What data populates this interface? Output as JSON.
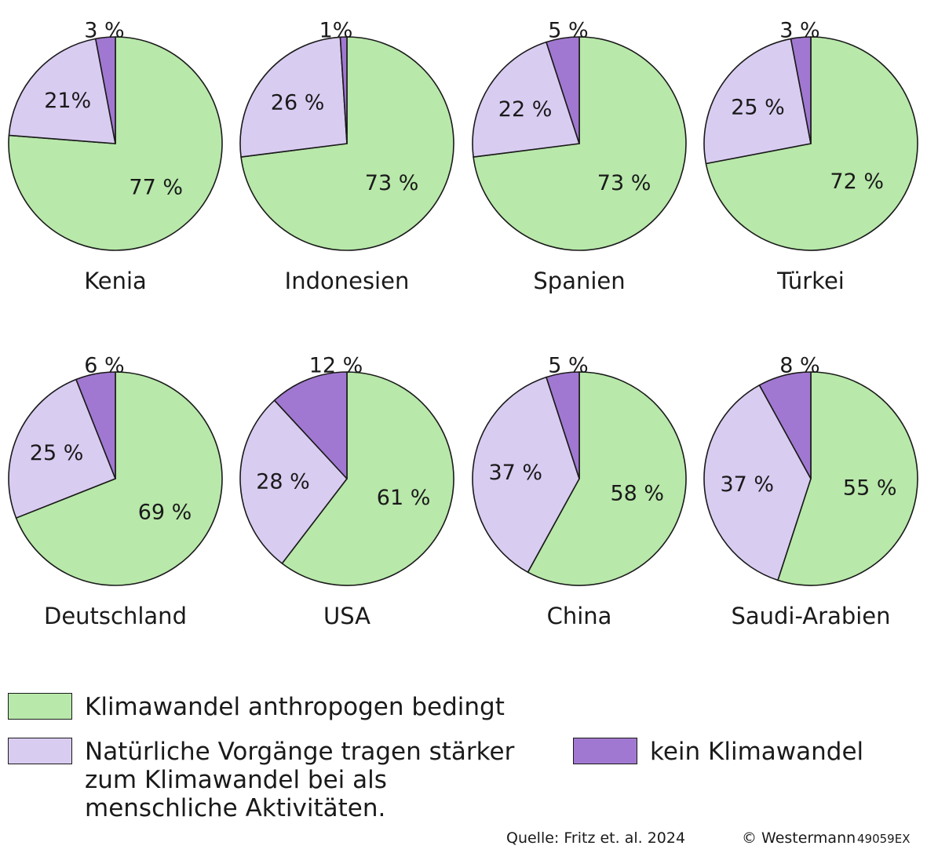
{
  "colors": {
    "anthropogenic": "#b8e8aa",
    "natural": "#d9ccf1",
    "none": "#a178d1",
    "stroke": "#1a1a1a"
  },
  "chart_data": {
    "type": "pie",
    "series_order": [
      "anthropogenic",
      "natural",
      "none"
    ],
    "charts": [
      {
        "country": "Kenia",
        "values": [
          77,
          21,
          3
        ],
        "labels": [
          "77 %",
          "21%",
          "3 %"
        ]
      },
      {
        "country": "Indonesien",
        "values": [
          73,
          26,
          1
        ],
        "labels": [
          "73 %",
          "26 %",
          "1%"
        ]
      },
      {
        "country": "Spanien",
        "values": [
          73,
          22,
          5
        ],
        "labels": [
          "73 %",
          "22 %",
          "5 %"
        ]
      },
      {
        "country": "Türkei",
        "values": [
          72,
          25,
          3
        ],
        "labels": [
          "72 %",
          "25 %",
          "3 %"
        ]
      },
      {
        "country": "Deutschland",
        "values": [
          69,
          25,
          6
        ],
        "labels": [
          "69 %",
          "25 %",
          "6 %"
        ]
      },
      {
        "country": "USA",
        "values": [
          61,
          28,
          12
        ],
        "labels": [
          "61 %",
          "28 %",
          "12 %"
        ]
      },
      {
        "country": "China",
        "values": [
          58,
          37,
          5
        ],
        "labels": [
          "58 %",
          "37 %",
          "5 %"
        ]
      },
      {
        "country": "Saudi-Arabien",
        "values": [
          55,
          37,
          8
        ],
        "labels": [
          "55 %",
          "37 %",
          "8 %"
        ]
      }
    ]
  },
  "legend": {
    "anthropogenic": "Klimawandel anthropogen bedingt",
    "natural": "Natürliche Vorgänge tragen stärker\nzum Klimawandel bei als\nmenschliche Aktivitäten.",
    "none": "kein Klimawandel"
  },
  "footer": {
    "source": "Quelle: Fritz et. al. 2024",
    "copyright": "© Westermann",
    "code": "49059EX"
  }
}
